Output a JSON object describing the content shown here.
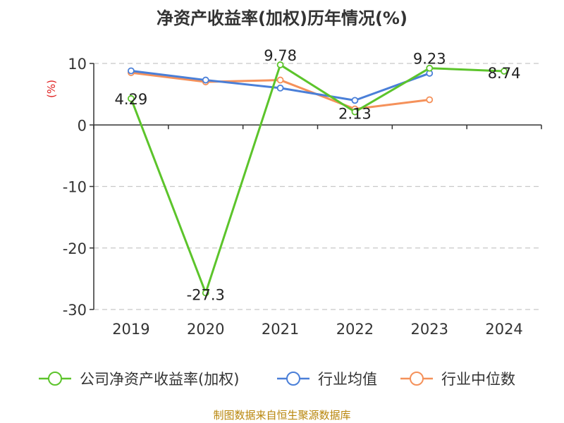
{
  "chart_data": {
    "type": "line",
    "title": "净资产收益率(加权)历年情况(%)",
    "ylabel": "(%)",
    "xlabel": "",
    "categories": [
      "2019",
      "2020",
      "2021",
      "2022",
      "2023",
      "2024"
    ],
    "ylim": [
      -30,
      10
    ],
    "yticks": [
      10,
      0,
      -10,
      -20,
      -30
    ],
    "grid": true,
    "legend_position": "bottom",
    "series": [
      {
        "name": "公司净资产收益率(加权)",
        "values": [
          4.29,
          -27.3,
          9.78,
          2.13,
          9.23,
          8.74
        ],
        "labels": [
          "4.29",
          "-27.3",
          "9.78",
          "2.13",
          "9.23",
          "8.74"
        ],
        "color": "#5cc42b"
      },
      {
        "name": "行业均值",
        "values": [
          8.8,
          7.3,
          6.0,
          4.0,
          8.4,
          null
        ],
        "color": "#4a7fd8"
      },
      {
        "name": "行业中位数",
        "values": [
          8.5,
          7.0,
          7.3,
          2.6,
          4.1,
          null
        ],
        "color": "#f5915a"
      }
    ],
    "source": "制图数据来自恒生聚源数据库"
  }
}
